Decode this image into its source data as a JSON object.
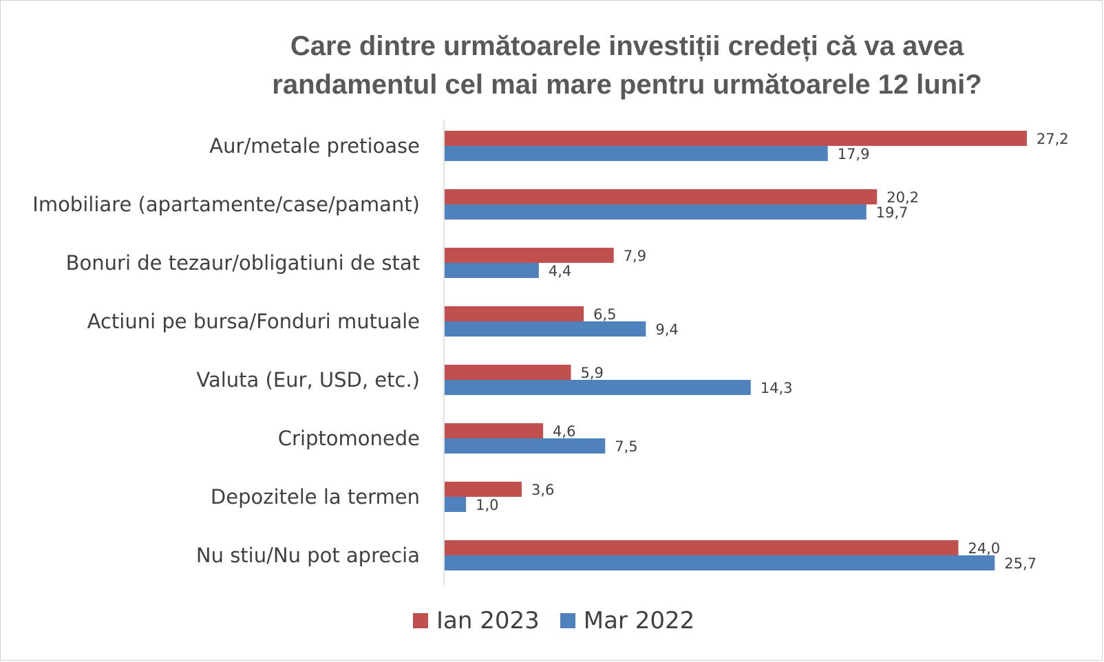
{
  "chart_data": {
    "type": "bar",
    "orientation": "horizontal",
    "title": "Care dintre următoarele investiții credeți că va avea\nrandamentul cel mai mare pentru următoarele 12 luni?",
    "categories": [
      "Aur/metale pretioase",
      "Imobiliare (apartamente/case/pamant)",
      "Bonuri de tezaur/obligatiuni de stat",
      "Actiuni pe bursa/Fonduri mutuale",
      "Valuta (Eur, USD, etc.)",
      "Criptomonede",
      "Depozitele la termen",
      "Nu stiu/Nu pot aprecia"
    ],
    "series": [
      {
        "name": "Ian 2023",
        "color": "#C0504D",
        "values": [
          27.2,
          20.2,
          7.9,
          6.5,
          5.9,
          4.6,
          3.6,
          24.0
        ],
        "labels": [
          "27,2",
          "20,2",
          "7,9",
          "6,5",
          "5,9",
          "4,6",
          "3,6",
          "24,0"
        ]
      },
      {
        "name": "Mar 2022",
        "color": "#4F81BD",
        "values": [
          17.9,
          19.7,
          4.4,
          9.4,
          14.3,
          7.5,
          1.0,
          25.7
        ],
        "labels": [
          "17,9",
          "19,7",
          "4,4",
          "9,4",
          "14,3",
          "7,5",
          "1,0",
          "25,7"
        ]
      }
    ],
    "xlim": [
      0,
      28
    ],
    "grid": false,
    "legend_position": "bottom"
  }
}
